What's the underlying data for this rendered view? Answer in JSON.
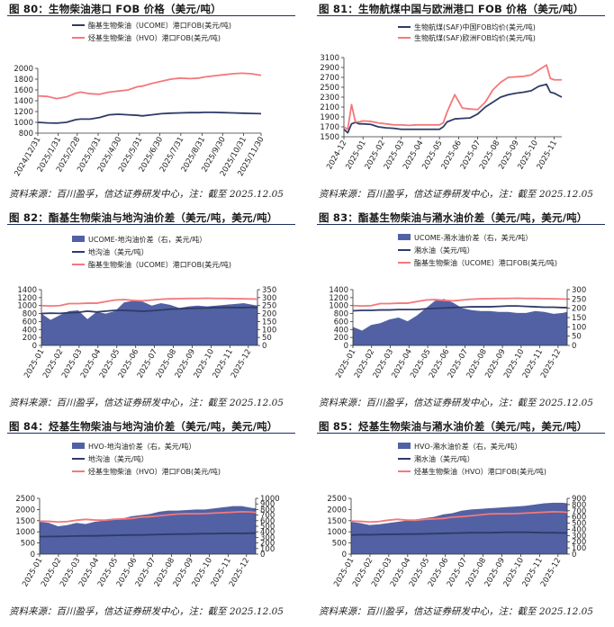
{
  "source_note": "资料来源：百川盈孚，信达证券研发中心，注：截至 2025.12.05",
  "colors": {
    "blue": "#2f3b68",
    "red": "#f4787a",
    "area": "#5261a3",
    "title_rule": "#1f2f5c"
  },
  "charts": [
    {
      "title": "图 80：生物柴油港口 FOB 价格（美元/吨）",
      "chart_data": {
        "type": "line",
        "x": [
          0,
          2,
          4,
          6,
          8,
          9,
          11,
          13,
          15,
          17,
          19,
          21,
          22,
          24,
          26,
          28,
          30,
          32,
          34,
          35,
          37,
          39,
          41,
          43,
          45,
          47
        ],
        "xticks": [
          "2024/12/31",
          "2025/1/31",
          "2025/2/28",
          "2025/3/31",
          "2025/4/30",
          "2025/5/31",
          "2025/6/30",
          "2025/7/31",
          "2025/8/31",
          "2025/9/30",
          "2025/10/31",
          "2025/11/30"
        ],
        "xtick_pos": [
          0,
          4.3,
          8.3,
          12.7,
          17,
          21.4,
          25.7,
          30.1,
          34.6,
          38.9,
          43.3,
          47.6
        ],
        "ylim": [
          800,
          2000
        ],
        "yticks": [
          800,
          1000,
          1200,
          1400,
          1600,
          1800,
          2000
        ],
        "series": [
          {
            "name": "酯基生物柴油（UCOME）港口FOB(美元/吨)",
            "color": "#2f3b68",
            "values": [
              1000,
              990,
              985,
              1000,
              1050,
              1060,
              1060,
              1090,
              1140,
              1150,
              1140,
              1130,
              1120,
              1140,
              1160,
              1170,
              1175,
              1180,
              1180,
              1185,
              1185,
              1180,
              1175,
              1170,
              1165,
              1160
            ]
          },
          {
            "name": "烃基生物柴油（HVO）港口FOB(美元/吨)",
            "color": "#f4787a",
            "values": [
              1490,
              1480,
              1440,
              1470,
              1540,
              1560,
              1530,
              1520,
              1560,
              1580,
              1600,
              1660,
              1670,
              1720,
              1760,
              1800,
              1820,
              1810,
              1820,
              1840,
              1860,
              1880,
              1900,
              1910,
              1900,
              1870
            ]
          }
        ],
        "right_axis": null
      }
    },
    {
      "title": "图 81：生物航煤中国与欧洲港口 FOB 价格（美元/吨）",
      "chart_data": {
        "type": "line",
        "x": [
          0,
          1,
          2,
          3,
          4,
          5,
          7,
          9,
          11,
          13,
          15,
          17,
          19,
          21,
          23,
          25,
          26,
          27,
          29,
          31,
          33,
          35,
          37,
          39,
          41,
          43,
          45,
          47,
          49,
          51,
          53,
          54,
          55,
          57
        ],
        "xticks": [
          "2024-12",
          "2025-01",
          "2025-02",
          "2025-03",
          "2025-04",
          "2025-05",
          "2025-06",
          "2025-07",
          "2025-08",
          "2025-09",
          "2025-10",
          "2025-11"
        ],
        "xtick_pos": [
          0,
          5,
          10,
          15,
          20,
          25,
          30,
          35,
          40,
          45,
          50,
          55
        ],
        "ylim": [
          1500,
          3100
        ],
        "yticks": [
          1500,
          1700,
          1900,
          2100,
          2300,
          2500,
          2700,
          2900,
          3100
        ],
        "series": [
          {
            "name": "生物航煤(SAF)中国FOB均价(美元/吨)",
            "color": "#2f3b68",
            "values": [
              1650,
              1580,
              1760,
              1790,
              1760,
              1760,
              1750,
              1700,
              1680,
              1670,
              1650,
              1650,
              1650,
              1650,
              1650,
              1650,
              1700,
              1800,
              1860,
              1870,
              1880,
              1960,
              2100,
              2200,
              2300,
              2350,
              2380,
              2400,
              2430,
              2520,
              2560,
              2400,
              2380,
              2300
            ]
          },
          {
            "name": "生物航煤(SAF)欧洲FOB均价(美元/吨)",
            "color": "#f4787a",
            "values": [
              1700,
              1650,
              2150,
              1800,
              1800,
              1820,
              1810,
              1780,
              1760,
              1740,
              1740,
              1730,
              1740,
              1740,
              1740,
              1740,
              1780,
              2000,
              2350,
              2080,
              2060,
              2050,
              2200,
              2450,
              2600,
              2700,
              2710,
              2720,
              2750,
              2850,
              2950,
              2680,
              2650,
              2650
            ]
          }
        ],
        "right_axis": null
      }
    },
    {
      "title": "图 82：酯基生物柴油与地沟油价差（美元/吨，美元/吨）",
      "chart_data": {
        "type": "area",
        "x": [
          0,
          2,
          4,
          6,
          8,
          10,
          12,
          14,
          16,
          18,
          20,
          22,
          24,
          26,
          28,
          30,
          32,
          34,
          36,
          38,
          40,
          42,
          44,
          46,
          47
        ],
        "xticks": [
          "2025-01",
          "2025-02",
          "2025-03",
          "2025-04",
          "2025-05",
          "2025-06",
          "2025-07",
          "2025-08",
          "2025-09",
          "2025-10",
          "2025-11",
          "2025-12"
        ],
        "xtick_pos": [
          0,
          4.1,
          8.2,
          12.3,
          16.4,
          20.5,
          24.6,
          28.7,
          32.8,
          36.9,
          41,
          45
        ],
        "ylim": [
          0,
          1400
        ],
        "yticks": [
          0,
          200,
          400,
          600,
          800,
          1000,
          1200,
          1400
        ],
        "y2lim": [
          0,
          350
        ],
        "y2ticks": [
          0,
          50,
          100,
          150,
          200,
          250,
          300,
          350
        ],
        "area": {
          "name": "UCOME-地沟油价差（右，美元/吨）",
          "color": "#5261a3",
          "values": [
            200,
            160,
            190,
            215,
            220,
            165,
            210,
            200,
            215,
            270,
            280,
            275,
            250,
            265,
            255,
            235,
            245,
            250,
            245,
            250,
            255,
            260,
            265,
            255,
            250
          ]
        },
        "series": [
          {
            "name": "地沟油（美元/吨）",
            "color": "#2f3b68",
            "values": [
              800,
              810,
              805,
              820,
              830,
              860,
              840,
              860,
              880,
              880,
              870,
              860,
              870,
              890,
              910,
              920,
              930,
              935,
              940,
              950,
              955,
              950,
              950,
              960,
              950
            ]
          },
          {
            "name": "酯基生物柴油（UCOME）港口FOB(美元/吨)",
            "color": "#f4787a",
            "values": [
              1000,
              990,
              1000,
              1050,
              1050,
              1060,
              1060,
              1100,
              1140,
              1150,
              1130,
              1120,
              1140,
              1160,
              1170,
              1175,
              1180,
              1180,
              1185,
              1180,
              1180,
              1175,
              1170,
              1165,
              1160
            ]
          }
        ]
      }
    },
    {
      "title": "图 83：酯基生物柴油与潲水油价差（美元/吨，美元/吨）",
      "chart_data": {
        "type": "area",
        "x": [
          0,
          2,
          4,
          6,
          8,
          10,
          12,
          14,
          16,
          18,
          20,
          22,
          24,
          26,
          28,
          30,
          32,
          34,
          36,
          38,
          40,
          42,
          44,
          46,
          47
        ],
        "xticks": [
          "2025-01",
          "2025-02",
          "2025-03",
          "2025-04",
          "2025-05",
          "2025-06",
          "2025-07",
          "2025-08",
          "2025-09",
          "2025-10",
          "2025-11",
          "2025-12"
        ],
        "xtick_pos": [
          0,
          4.1,
          8.2,
          12.3,
          16.4,
          20.5,
          24.6,
          28.7,
          32.8,
          36.9,
          41,
          45
        ],
        "ylim": [
          0,
          1400
        ],
        "yticks": [
          0,
          200,
          400,
          600,
          800,
          1000,
          1200,
          1400
        ],
        "y2lim": [
          0,
          300
        ],
        "y2ticks": [
          0,
          50,
          100,
          150,
          200,
          250,
          300
        ],
        "area": {
          "name": "UCOME-潲水油价差（右，美元/吨）",
          "color": "#5261a3",
          "values": [
            100,
            80,
            110,
            120,
            140,
            150,
            130,
            160,
            200,
            240,
            250,
            230,
            200,
            190,
            185,
            185,
            180,
            180,
            175,
            175,
            185,
            180,
            170,
            175,
            180
          ]
        },
        "series": [
          {
            "name": "潲水油（美元/吨）",
            "color": "#2f3b68",
            "values": [
              870,
              880,
              880,
              890,
              890,
              900,
              900,
              900,
              920,
              930,
              940,
              950,
              960,
              970,
              970,
              970,
              980,
              990,
              990,
              980,
              970,
              960,
              960,
              950,
              950
            ]
          },
          {
            "name": "酯基生物柴油（UCOME）港口FOB(美元/吨)",
            "color": "#f4787a",
            "values": [
              1000,
              990,
              1000,
              1050,
              1050,
              1060,
              1060,
              1100,
              1140,
              1150,
              1130,
              1120,
              1140,
              1160,
              1170,
              1175,
              1180,
              1180,
              1185,
              1180,
              1180,
              1175,
              1170,
              1165,
              1160
            ]
          }
        ]
      }
    },
    {
      "title": "图 84：烃基生物柴油与地沟油价差（美元/吨，美元/吨）",
      "chart_data": {
        "type": "area",
        "x": [
          0,
          2,
          4,
          6,
          8,
          10,
          12,
          14,
          16,
          18,
          20,
          22,
          24,
          26,
          28,
          30,
          32,
          34,
          36,
          38,
          40,
          42,
          44,
          46,
          47
        ],
        "xticks": [
          "2025-01",
          "2025-02",
          "2025-03",
          "2025-04",
          "2025-05",
          "2025-06",
          "2025-07",
          "2025-08",
          "2025-09",
          "2025-10",
          "2025-11",
          "2025-12"
        ],
        "xtick_pos": [
          0,
          4.1,
          8.2,
          12.3,
          16.4,
          20.5,
          24.6,
          28.7,
          32.8,
          36.9,
          41,
          45
        ],
        "ylim": [
          0,
          2500
        ],
        "yticks": [
          0,
          500,
          1000,
          1500,
          2000,
          2500
        ],
        "y2lim": [
          0,
          1000
        ],
        "y2ticks": [
          0,
          100,
          200,
          300,
          400,
          500,
          600,
          700,
          800,
          900,
          1000
        ],
        "area": {
          "name": "HVO-地沟油价差（右，美元/吨）",
          "color": "#5261a3",
          "values": [
            580,
            560,
            500,
            520,
            560,
            540,
            580,
            600,
            620,
            640,
            680,
            700,
            720,
            760,
            780,
            780,
            790,
            800,
            800,
            820,
            840,
            860,
            860,
            830,
            820
          ]
        },
        "series": [
          {
            "name": "地沟油（美元/吨）",
            "color": "#2f3b68",
            "values": [
              780,
              790,
              790,
              800,
              810,
              820,
              820,
              830,
              840,
              850,
              860,
              860,
              870,
              880,
              890,
              900,
              900,
              910,
              920,
              920,
              930,
              930,
              930,
              940,
              940
            ]
          },
          {
            "name": "烃基生物柴油（HVO）港口FOB(美元/吨)",
            "color": "#f4787a",
            "values": [
              1480,
              1470,
              1440,
              1460,
              1520,
              1560,
              1530,
              1520,
              1560,
              1580,
              1600,
              1660,
              1680,
              1720,
              1760,
              1800,
              1810,
              1810,
              1820,
              1840,
              1860,
              1880,
              1900,
              1890,
              1870
            ]
          }
        ]
      }
    },
    {
      "title": "图 85：烃基生物柴油与潲水油价差（美元/吨，美元/吨）",
      "chart_data": {
        "type": "area",
        "x": [
          0,
          2,
          4,
          6,
          8,
          10,
          12,
          14,
          16,
          18,
          20,
          22,
          24,
          26,
          28,
          30,
          32,
          34,
          36,
          38,
          40,
          42,
          44,
          46,
          47
        ],
        "xticks": [
          "2025-01",
          "2025-02",
          "2025-03",
          "2025-04",
          "2025-05",
          "2025-06",
          "2025-07",
          "2025-08",
          "2025-09",
          "2025-10",
          "2025-11",
          "2025-12"
        ],
        "xtick_pos": [
          0,
          4.1,
          8.2,
          12.3,
          16.4,
          20.5,
          24.6,
          28.7,
          32.8,
          36.9,
          41,
          45
        ],
        "ylim": [
          0,
          2500
        ],
        "yticks": [
          0,
          500,
          1000,
          1500,
          2000,
          2500
        ],
        "y2lim": [
          0,
          900
        ],
        "y2ticks": [
          0,
          100,
          200,
          300,
          400,
          500,
          600,
          700,
          800,
          900
        ],
        "area": {
          "name": "HVO-潲水油价差（右，美元/吨）",
          "color": "#5261a3",
          "values": [
            520,
            500,
            470,
            480,
            500,
            520,
            540,
            560,
            580,
            600,
            640,
            660,
            700,
            720,
            730,
            740,
            750,
            760,
            770,
            780,
            800,
            820,
            830,
            830,
            820
          ]
        },
        "series": [
          {
            "name": "潲水油（美元/吨）",
            "color": "#2f3b68",
            "values": [
              860,
              870,
              870,
              880,
              890,
              890,
              900,
              900,
              910,
              920,
              930,
              940,
              950,
              960,
              960,
              960,
              970,
              980,
              980,
              980,
              970,
              960,
              960,
              950,
              950
            ]
          },
          {
            "name": "烃基生物柴油（HVO）港口FOB(美元/吨)",
            "color": "#f4787a",
            "values": [
              1480,
              1470,
              1440,
              1460,
              1520,
              1560,
              1530,
              1520,
              1560,
              1580,
              1600,
              1660,
              1680,
              1720,
              1760,
              1800,
              1810,
              1810,
              1820,
              1840,
              1860,
              1880,
              1900,
              1890,
              1870
            ]
          }
        ]
      }
    }
  ]
}
